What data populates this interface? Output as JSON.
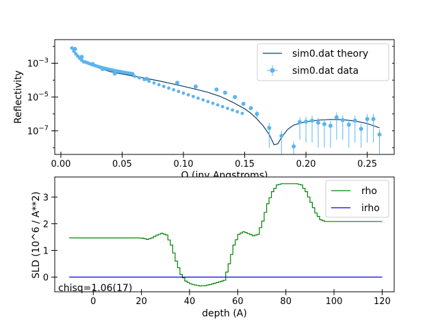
{
  "chart_data": [
    {
      "type": "line",
      "xlabel": "Q (inv Angstroms)",
      "ylabel": "Reflectivity",
      "yscale": "log",
      "xlim": [
        -0.005,
        0.272
      ],
      "ylim": [
        4e-09,
        0.025
      ],
      "xticks": [
        "0.00",
        "0.05",
        "0.10",
        "0.15",
        "0.20",
        "0.25"
      ],
      "yticks": [
        "10^-3",
        "10^-5",
        "10^-7"
      ],
      "legend": "upper right",
      "colors": {
        "theory": "#0a3d62",
        "data": "#5ab4f0"
      },
      "series": [
        {
          "name": "sim0.dat theory",
          "x": [
            0.009,
            0.012,
            0.015,
            0.02,
            0.03,
            0.04,
            0.05,
            0.06,
            0.07,
            0.08,
            0.09,
            0.1,
            0.11,
            0.12,
            0.13,
            0.14,
            0.15,
            0.155,
            0.16,
            0.165,
            0.17,
            0.174,
            0.177,
            0.18,
            0.185,
            0.19,
            0.2,
            0.21,
            0.22,
            0.23,
            0.24,
            0.25,
            0.26
          ],
          "y": [
            0.008,
            0.0042,
            0.0024,
            0.0012,
            0.00055,
            0.00032,
            0.00023,
            0.00017,
            0.000125,
            9e-05,
            6.3e-05,
            4.3e-05,
            2.9e-05,
            1.9e-05,
            1.1e-05,
            5e-06,
            2e-06,
            1.1e-06,
            5e-07,
            2e-07,
            6e-08,
            1.5e-08,
            1.7e-08,
            4e-08,
            1.2e-07,
            2.2e-07,
            3.5e-07,
            4.3e-07,
            4.7e-07,
            4.6e-07,
            3.8e-07,
            2.7e-07,
            1.5e-07
          ]
        },
        {
          "name": "sim0.dat data",
          "x": [
            0.0115,
            0.017,
            0.026,
            0.034,
            0.044,
            0.07,
            0.095,
            0.11,
            0.127,
            0.134,
            0.142,
            0.149,
            0.155,
            0.16,
            0.17,
            0.18,
            0.19,
            0.195,
            0.2,
            0.205,
            0.21,
            0.215,
            0.22,
            0.225,
            0.23,
            0.235,
            0.24,
            0.245,
            0.25,
            0.255,
            0.26
          ],
          "y": [
            0.007,
            0.0024,
            0.0009,
            0.00045,
            0.00025,
            0.00012,
            7e-05,
            4.2e-05,
            2.8e-05,
            1.8e-05,
            1e-05,
            4e-06,
            2.2e-06,
            1e-06,
            1.5e-07,
            5e-08,
            1.2e-08,
            3.3e-07,
            3.5e-07,
            4e-07,
            3e-07,
            2.5e-07,
            2e-07,
            6.3e-07,
            4.3e-07,
            2.3e-07,
            4e-07,
            1.3e-07,
            5e-07,
            5e-07,
            6e-08
          ],
          "yerr": [
            0.0002,
            8e-05,
            3e-05,
            1.5e-05,
            8e-06,
            4e-06,
            2.5e-06,
            1.5e-06,
            1e-06,
            8e-07,
            6e-07,
            5e-07,
            4e-07,
            5e-07,
            1.4e-07,
            4.8e-08,
            1.1e-08,
            3e-07,
            3.3e-07,
            3.8e-07,
            2.9e-07,
            2.4e-07,
            1.9e-07,
            6e-07,
            4e-07,
            2.2e-07,
            3.8e-07,
            1.2e-07,
            4.8e-07,
            4.8e-07,
            5.9e-08
          ]
        }
      ]
    },
    {
      "type": "line",
      "xlabel": "depth (A)",
      "ylabel": "SLD (10^6 / A**2)",
      "xlim": [
        -16,
        125
      ],
      "ylim": [
        -0.55,
        3.75
      ],
      "xticks": [
        "0",
        "20",
        "40",
        "60",
        "80",
        "100",
        "120"
      ],
      "yticks": [
        "0",
        "1",
        "2",
        "3"
      ],
      "legend": "upper right",
      "annotation": "chisq=1.06(17)",
      "colors": {
        "rho": "#008000",
        "irho": "#0000cc"
      },
      "series": [
        {
          "name": "rho",
          "x": [
            -10,
            18,
            20,
            22,
            24,
            26,
            28,
            30,
            32,
            34,
            36,
            38,
            40,
            42,
            44,
            46,
            48,
            50,
            52,
            54,
            56,
            58,
            60,
            62,
            64,
            66,
            68,
            70,
            72,
            74,
            76,
            78,
            80,
            82,
            84,
            86,
            88,
            90,
            92,
            94,
            96,
            100,
            110,
            120
          ],
          "y": [
            1.47,
            1.47,
            1.46,
            1.41,
            1.47,
            1.57,
            1.64,
            1.58,
            1.2,
            0.6,
            0.1,
            -0.15,
            -0.25,
            -0.3,
            -0.33,
            -0.32,
            -0.28,
            -0.23,
            -0.18,
            -0.12,
            0.5,
            1.2,
            1.6,
            1.7,
            1.63,
            1.55,
            1.6,
            2.1,
            2.75,
            3.2,
            3.45,
            3.5,
            3.5,
            3.5,
            3.5,
            3.45,
            3.2,
            2.8,
            2.4,
            2.15,
            2.08,
            2.08,
            2.08,
            2.08
          ]
        },
        {
          "name": "irho",
          "x": [
            -10,
            120
          ],
          "y": [
            0,
            0
          ]
        }
      ]
    }
  ]
}
